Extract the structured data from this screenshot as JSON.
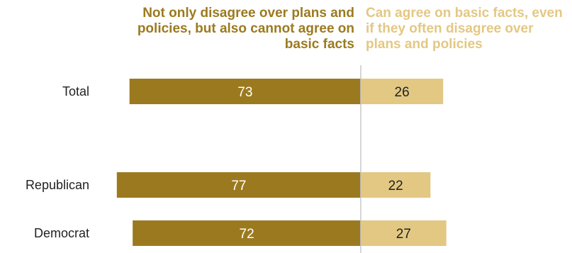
{
  "chart_data": {
    "type": "bar",
    "orientation": "horizontal-diverging",
    "categories": [
      "Total",
      "Republican",
      "Democrat"
    ],
    "series": [
      {
        "name": "Not only disagree over plans and policies, but also cannot agree on basic facts",
        "values": [
          73,
          77,
          72
        ],
        "color": "#9b7a1f",
        "label_color": "#ffffff"
      },
      {
        "name": "Can agree on basic facts, even if they often disagree over plans and policies",
        "values": [
          26,
          22,
          27
        ],
        "color": "#e3c883",
        "label_color": "#222222"
      }
    ],
    "xlim": [
      -100,
      100
    ],
    "grid": false,
    "legend": "top"
  }
}
